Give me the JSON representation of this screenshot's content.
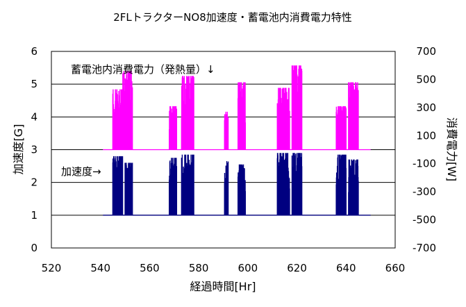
{
  "chart_data": {
    "type": "line",
    "title": "2FLトラクターNO8加速度・蓄電池内消費電力特性",
    "xlabel": "経過時間[Hr]",
    "ylabel": "加速度[G]",
    "y2label": "消費電力[W]",
    "xlim": [
      520,
      660
    ],
    "ylim": [
      0,
      6
    ],
    "y2lim": [
      -700,
      700
    ],
    "xticks": [
      "520",
      "540",
      "560",
      "580",
      "600",
      "620",
      "640",
      "660"
    ],
    "yticks": [
      "0",
      "1",
      "2",
      "3",
      "4",
      "5",
      "6"
    ],
    "y2ticks": [
      "-700",
      "-500",
      "-300",
      "-100",
      "100",
      "300",
      "500",
      "700"
    ],
    "grid": "horizontal",
    "annotations": {
      "power": "蓄電池内消費電力（発熱量）↓",
      "accel": "加速度→"
    },
    "colors": {
      "accel": "#000080",
      "power": "#ff00ff",
      "grid": "#000000"
    },
    "series": [
      {
        "key": "accel",
        "axis": "left",
        "baseline": 1.0,
        "x_range": [
          541,
          650
        ],
        "bursts": [
          {
            "x": [
              545,
              549
            ],
            "peak": 2.8
          },
          {
            "x": [
              550,
              553
            ],
            "peak": 2.6
          },
          {
            "x": [
              568,
              571
            ],
            "peak": 2.75
          },
          {
            "x": [
              573,
              578
            ],
            "peak": 2.85
          },
          {
            "x": [
              590.5,
              592
            ],
            "peak": 2.65
          },
          {
            "x": [
              596,
              599
            ],
            "peak": 2.55
          },
          {
            "x": [
              612,
              617
            ],
            "peak": 2.9
          },
          {
            "x": [
              618,
              622
            ],
            "peak": 2.9
          },
          {
            "x": [
              636,
              640
            ],
            "peak": 2.85
          },
          {
            "x": [
              641,
              645
            ],
            "peak": 2.7
          }
        ]
      },
      {
        "key": "power",
        "axis": "right",
        "baseline": 0,
        "x_range": [
          541,
          650
        ],
        "bursts": [
          {
            "x": [
              545,
              549
            ],
            "peak": 430
          },
          {
            "x": [
              549,
              553
            ],
            "peak": 560
          },
          {
            "x": [
              568,
              571
            ],
            "peak": 310
          },
          {
            "x": [
              573,
              578
            ],
            "peak": 525
          },
          {
            "x": [
              590.5,
              592
            ],
            "peak": 270
          },
          {
            "x": [
              596,
              599
            ],
            "peak": 480
          },
          {
            "x": [
              612,
              617
            ],
            "peak": 440
          },
          {
            "x": [
              618,
              622
            ],
            "peak": 600
          },
          {
            "x": [
              636,
              640
            ],
            "peak": 310
          },
          {
            "x": [
              641,
              645
            ],
            "peak": 480
          }
        ]
      }
    ]
  }
}
